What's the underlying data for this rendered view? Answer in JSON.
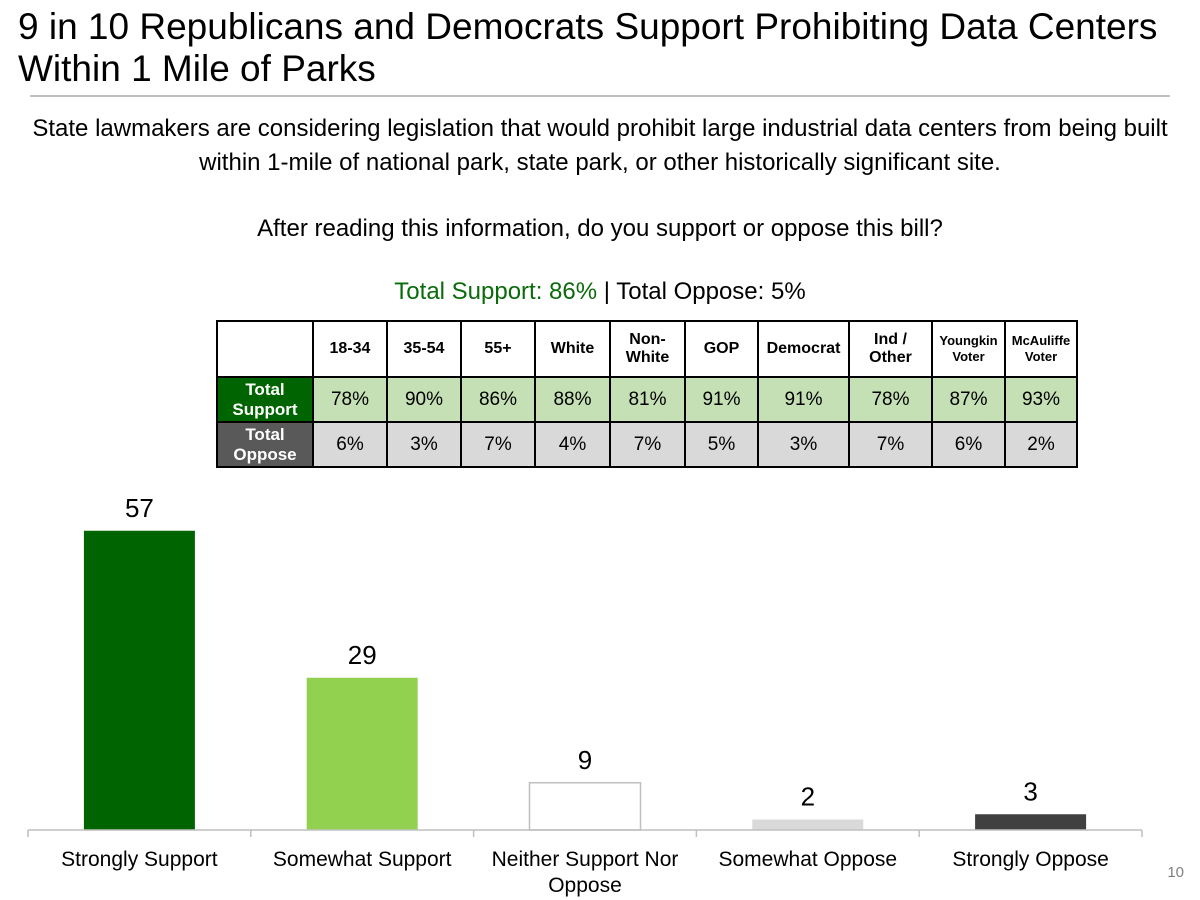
{
  "title": "9 in 10 Republicans and Democrats Support Prohibiting Data Centers Within 1 Mile of Parks",
  "question": {
    "text": "State lawmakers are considering legislation that would prohibit large industrial data centers from being built within 1-mile of national park, state park, or other historically significant site.",
    "prompt": "After reading this information, do you support or oppose this bill?"
  },
  "totals": {
    "support": "Total Support: 86%",
    "separator": " | ",
    "oppose": "Total Oppose: 5%"
  },
  "crosstab": {
    "columns": [
      "18-34",
      "35-54",
      "55+",
      "White",
      "Non-White",
      "GOP",
      "Democrat",
      "Ind / Other",
      "Youngkin Voter",
      "McAuliffe Voter"
    ],
    "rows": [
      {
        "label": "Total Support",
        "values": [
          "78%",
          "90%",
          "86%",
          "88%",
          "81%",
          "91%",
          "91%",
          "78%",
          "87%",
          "93%"
        ]
      },
      {
        "label": "Total Oppose",
        "values": [
          "6%",
          "3%",
          "7%",
          "4%",
          "7%",
          "5%",
          "3%",
          "7%",
          "6%",
          "2%"
        ]
      }
    ]
  },
  "chart_data": {
    "type": "bar",
    "categories": [
      "Strongly Support",
      "Somewhat Support",
      "Neither Support Nor Oppose",
      "Somewhat Oppose",
      "Strongly Oppose"
    ],
    "values": [
      57,
      29,
      9,
      2,
      3
    ],
    "colors": [
      "#006400",
      "#92d050",
      "#ffffff",
      "#d9d9d9",
      "#404040"
    ],
    "title": "",
    "xlabel": "",
    "ylabel": "",
    "ylim": [
      0,
      60
    ],
    "grid": false,
    "legend": "none"
  },
  "page_number": "10"
}
